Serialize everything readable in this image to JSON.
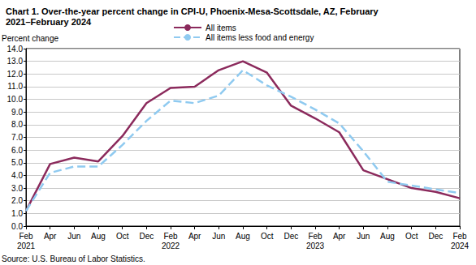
{
  "chart_data": {
    "type": "line",
    "title": "Chart 1. Over-the-year percent change in CPI-U, Phoenix-Mesa-Scottsdale, AZ, February\n2021–February 2024",
    "y_label": "Percent change",
    "note": "Source: U.S. Bureau of Labor Statistics.",
    "categories": [
      "Feb\n2021",
      "Apr",
      "Jun",
      "Aug",
      "Oct",
      "Dec",
      "Feb\n2022",
      "Apr",
      "Jun",
      "Aug",
      "Oct",
      "Dec",
      "Feb\n2023",
      "Apr",
      "Jun",
      "Aug",
      "Oct",
      "Dec",
      "Feb\n2024"
    ],
    "series": [
      {
        "name": "All items",
        "color": "#8b2a5c",
        "line_style": "solid",
        "values": [
          1.2,
          4.9,
          5.4,
          5.1,
          7.1,
          9.7,
          10.9,
          11.0,
          12.3,
          13.0,
          12.1,
          9.5,
          8.5,
          7.4,
          4.4,
          3.7,
          3.0,
          2.7,
          2.2
        ]
      },
      {
        "name": "All items less food and energy",
        "color": "#8fcaf0",
        "line_style": "dashed",
        "values": [
          1.2,
          4.2,
          4.7,
          4.7,
          6.4,
          8.3,
          9.9,
          9.7,
          10.3,
          12.3,
          11.1,
          10.2,
          9.2,
          8.1,
          5.9,
          3.5,
          3.2,
          2.9,
          2.6
        ]
      }
    ],
    "ylim": [
      0,
      14
    ],
    "yticks": [
      {
        "value": 0,
        "label": "0.0"
      },
      {
        "value": 1,
        "label": "1.0"
      },
      {
        "value": 2,
        "label": "2.0"
      },
      {
        "value": 3,
        "label": "3.0"
      },
      {
        "value": 4,
        "label": "4.0"
      },
      {
        "value": 5,
        "label": "5.0"
      },
      {
        "value": 6,
        "label": "6.0"
      },
      {
        "value": 7,
        "label": "7.0"
      },
      {
        "value": 8,
        "label": "8.0"
      },
      {
        "value": 9,
        "label": "9.0"
      },
      {
        "value": 10,
        "label": "10.0"
      },
      {
        "value": 11,
        "label": "11.0"
      },
      {
        "value": 12,
        "label": "12.0"
      },
      {
        "value": 13,
        "label": "13.0"
      },
      {
        "value": 14,
        "label": "14.0"
      }
    ],
    "grid": true,
    "legend": "top"
  }
}
